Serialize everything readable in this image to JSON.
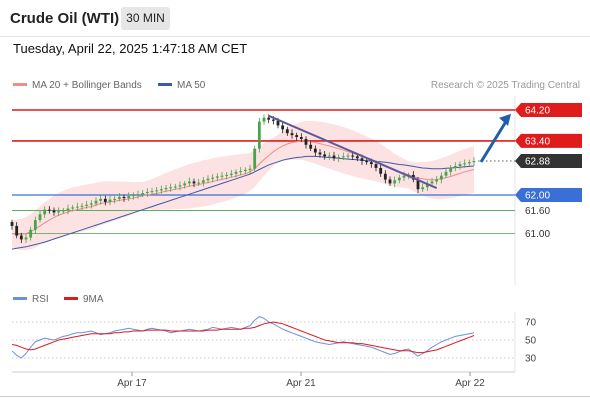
{
  "header": {
    "title": "Crude Oil (WTI)",
    "timeframe": "30 MIN",
    "timestamp": "Tuesday, April 22, 2025 1:47:18 AM CET"
  },
  "legend": {
    "ma20": "MA 20 + Bollinger Bands",
    "ma50": "MA 50",
    "credit": "Research © 2025 Trading Central",
    "rsi": "RSI",
    "rsi_ma": "9MA"
  },
  "colors": {
    "resistance": "#e01b1b",
    "support_line": "#3a6fd8",
    "support_green": "#49a349",
    "candle_up": "#49a349",
    "candle_down": "#222222",
    "ma20": "#f08c8c",
    "ma50": "#3b5ca8",
    "bollinger": "#fbd8d8",
    "trendline": "#5a5a9a",
    "arrow": "#1f5fa8",
    "last_price": "#333333",
    "rsi": "#6d8fe0",
    "rsi_ma": "#e01b1b"
  },
  "chart_data": [
    {
      "type": "candlestick",
      "title": "Crude Oil (WTI) 30 MIN",
      "x_tick_labels": [
        "Apr 17",
        "Apr 21",
        "Apr 22"
      ],
      "y_range": [
        60.4,
        64.6
      ],
      "levels": [
        {
          "label": "64.20",
          "value": 64.2,
          "kind": "resistance"
        },
        {
          "label": "63.40",
          "value": 63.4,
          "kind": "resistance"
        },
        {
          "label": "62.88",
          "value": 62.88,
          "kind": "last"
        },
        {
          "label": "62.00",
          "value": 62.0,
          "kind": "pivot"
        },
        {
          "label": "61.60",
          "value": 61.6,
          "kind": "support"
        },
        {
          "label": "61.00",
          "value": 61.0,
          "kind": "support"
        }
      ],
      "closes": [
        61.2,
        60.95,
        60.85,
        60.9,
        61.1,
        61.35,
        61.5,
        61.62,
        61.6,
        61.55,
        61.58,
        61.6,
        61.65,
        61.68,
        61.7,
        61.72,
        61.75,
        61.78,
        61.85,
        61.9,
        61.82,
        61.88,
        61.9,
        61.95,
        61.92,
        61.97,
        62.0,
        62.02,
        62.05,
        62.08,
        62.1,
        62.12,
        62.15,
        62.18,
        62.2,
        62.22,
        62.25,
        62.3,
        62.35,
        62.3,
        62.32,
        62.38,
        62.42,
        62.45,
        62.48,
        62.5,
        62.52,
        62.55,
        62.6,
        62.62,
        62.65,
        62.68,
        63.2,
        63.9,
        64.0,
        63.95,
        63.92,
        63.8,
        63.7,
        63.6,
        63.55,
        63.5,
        63.45,
        63.3,
        63.2,
        63.1,
        63.05,
        63.0,
        63.02,
        62.95,
        62.98,
        63.0,
        63.02,
        63.0,
        62.95,
        62.88,
        62.85,
        62.8,
        62.7,
        62.55,
        62.4,
        62.3,
        62.38,
        62.45,
        62.5,
        62.52,
        62.4,
        62.15,
        62.2,
        62.3,
        62.35,
        62.4,
        62.5,
        62.6,
        62.7,
        62.75,
        62.8,
        62.82,
        62.85,
        62.88
      ],
      "ma20": [
        61.0,
        60.98,
        60.98,
        61.0,
        61.05,
        61.12,
        61.2,
        61.28,
        61.35,
        61.42,
        61.48,
        61.52,
        61.56,
        61.6,
        61.62,
        61.65,
        61.68,
        61.7,
        61.74,
        61.78,
        61.8,
        61.82,
        61.84,
        61.86,
        61.88,
        61.9,
        61.92,
        61.95,
        61.98,
        62.0,
        62.02,
        62.04,
        62.07,
        62.1,
        62.12,
        62.15,
        62.17,
        62.2,
        62.23,
        62.25,
        62.27,
        62.3,
        62.32,
        62.35,
        62.38,
        62.4,
        62.43,
        62.46,
        62.49,
        62.52,
        62.55,
        62.6,
        62.68,
        62.8,
        62.92,
        63.02,
        63.12,
        63.2,
        63.27,
        63.32,
        63.36,
        63.38,
        63.4,
        63.4,
        63.38,
        63.36,
        63.33,
        63.3,
        63.27,
        63.23,
        63.2,
        63.16,
        63.12,
        63.08,
        63.04,
        63.0,
        62.96,
        62.92,
        62.88,
        62.82,
        62.76,
        62.7,
        62.64,
        62.6,
        62.56,
        62.52,
        62.48,
        62.44,
        62.42,
        62.4,
        62.39,
        62.4,
        62.42,
        62.45,
        62.48,
        62.52,
        62.56,
        62.6,
        62.63,
        62.66
      ],
      "ma50": [
        60.6,
        60.62,
        60.64,
        60.66,
        60.69,
        60.72,
        60.75,
        60.78,
        60.82,
        60.86,
        60.9,
        60.94,
        60.98,
        61.02,
        61.06,
        61.1,
        61.14,
        61.18,
        61.22,
        61.26,
        61.3,
        61.34,
        61.38,
        61.42,
        61.46,
        61.5,
        61.54,
        61.58,
        61.62,
        61.66,
        61.7,
        61.74,
        61.78,
        61.82,
        61.86,
        61.9,
        61.94,
        61.98,
        62.02,
        62.06,
        62.1,
        62.14,
        62.18,
        62.22,
        62.26,
        62.3,
        62.34,
        62.38,
        62.42,
        62.46,
        62.5,
        62.54,
        62.6,
        62.66,
        62.72,
        62.78,
        62.82,
        62.86,
        62.9,
        62.93,
        62.95,
        62.97,
        62.98,
        63.0,
        63.0,
        63.0,
        62.99,
        62.98,
        62.97,
        62.96,
        62.95,
        62.94,
        62.93,
        62.92,
        62.91,
        62.9,
        62.89,
        62.88,
        62.87,
        62.86,
        62.85,
        62.83,
        62.81,
        62.79,
        62.78,
        62.76,
        62.74,
        62.72,
        62.7,
        62.69,
        62.68,
        62.68,
        62.68,
        62.69,
        62.7,
        62.71,
        62.72,
        62.73,
        62.74,
        62.75
      ]
    },
    {
      "type": "line",
      "title": "RSI",
      "y_tick_labels": [
        "70",
        "50",
        "30"
      ],
      "y_range": [
        20,
        80
      ],
      "series": [
        {
          "name": "RSI",
          "values": [
            38,
            33,
            30,
            35,
            42,
            48,
            50,
            52,
            51,
            50,
            52,
            54,
            55,
            57,
            58,
            58,
            59,
            60,
            58,
            56,
            57,
            58,
            60,
            61,
            62,
            63,
            62,
            61,
            60,
            62,
            63,
            62,
            61,
            60,
            58,
            59,
            60,
            61,
            62,
            61,
            60,
            61,
            62,
            64,
            63,
            62,
            63,
            64,
            63,
            62,
            64,
            66,
            72,
            76,
            74,
            70,
            68,
            65,
            62,
            60,
            58,
            56,
            54,
            52,
            50,
            48,
            47,
            46,
            45,
            46,
            47,
            48,
            47,
            46,
            45,
            44,
            43,
            42,
            40,
            38,
            36,
            34,
            35,
            37,
            39,
            40,
            36,
            32,
            35,
            38,
            42,
            45,
            48,
            50,
            52,
            54,
            55,
            56,
            57,
            58
          ]
        },
        {
          "name": "9MA",
          "values": [
            45,
            44,
            42,
            40,
            39,
            40,
            42,
            44,
            46,
            48,
            50,
            51,
            52,
            53,
            54,
            55,
            56,
            57,
            57,
            57,
            57,
            57,
            58,
            58,
            59,
            59,
            60,
            60,
            60,
            61,
            61,
            61,
            61,
            61,
            60,
            60,
            60,
            60,
            60,
            60,
            60,
            60,
            61,
            61,
            61,
            62,
            62,
            62,
            62,
            62,
            63,
            63,
            64,
            66,
            68,
            69,
            70,
            69,
            68,
            66,
            64,
            62,
            60,
            58,
            56,
            54,
            52,
            50,
            49,
            48,
            47,
            47,
            47,
            47,
            46,
            46,
            45,
            44,
            43,
            42,
            41,
            40,
            39,
            38,
            38,
            38,
            37,
            36,
            36,
            37,
            38,
            39,
            41,
            43,
            45,
            47,
            49,
            51,
            53,
            55
          ]
        }
      ]
    }
  ]
}
